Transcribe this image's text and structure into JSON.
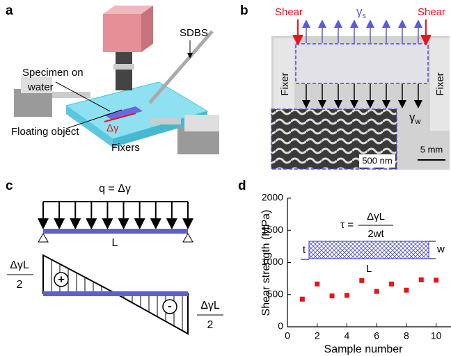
{
  "panel_a": {
    "label": "a",
    "sdbs": "SDBS",
    "specimen": [
      "Specimen on",
      "water"
    ],
    "floating_object": "Floating object",
    "delta_gamma": "Δγ",
    "fixers": "Fixers"
  },
  "panel_b": {
    "label": "b",
    "shear_left": "Shear",
    "shear_right": "Shear",
    "gamma_s": {
      "symbol": "γ",
      "subscript": "s"
    },
    "fixer_left": "Fixer",
    "fixer_right": "Fixer",
    "gamma_w": {
      "symbol": "γ",
      "subscript": "w"
    },
    "scale_bar": "5 mm",
    "inset_scale_bar": "500 nm"
  },
  "panel_c": {
    "label": "c",
    "load": "q = Δγ",
    "length": "L",
    "left_value": {
      "numerator": "ΔγL",
      "denominator": "2"
    },
    "positive": "+",
    "negative": "-",
    "right_value": {
      "numerator": "ΔγL",
      "denominator": "2"
    }
  },
  "chart_data": {
    "type": "scatter",
    "panel_label": "d",
    "formula": {
      "lhs": "τ =",
      "numerator": "ΔγL",
      "denominator": "2wt"
    },
    "inset_labels": {
      "thickness": "t",
      "width": "w",
      "length": "L"
    },
    "x_label": "Sample number",
    "y_label": "Shear strength (MPa)",
    "x": [
      1,
      2,
      3,
      4,
      5,
      6,
      7,
      8,
      9,
      10
    ],
    "values": [
      430,
      665,
      480,
      490,
      720,
      550,
      665,
      570,
      730,
      725
    ],
    "color": "#e8141b",
    "xlim": [
      0,
      11
    ],
    "ylim": [
      0,
      2000
    ],
    "xticks": [
      0,
      2,
      4,
      6,
      8,
      10
    ],
    "yticks": [
      0,
      500,
      1000,
      1500,
      2000
    ]
  }
}
